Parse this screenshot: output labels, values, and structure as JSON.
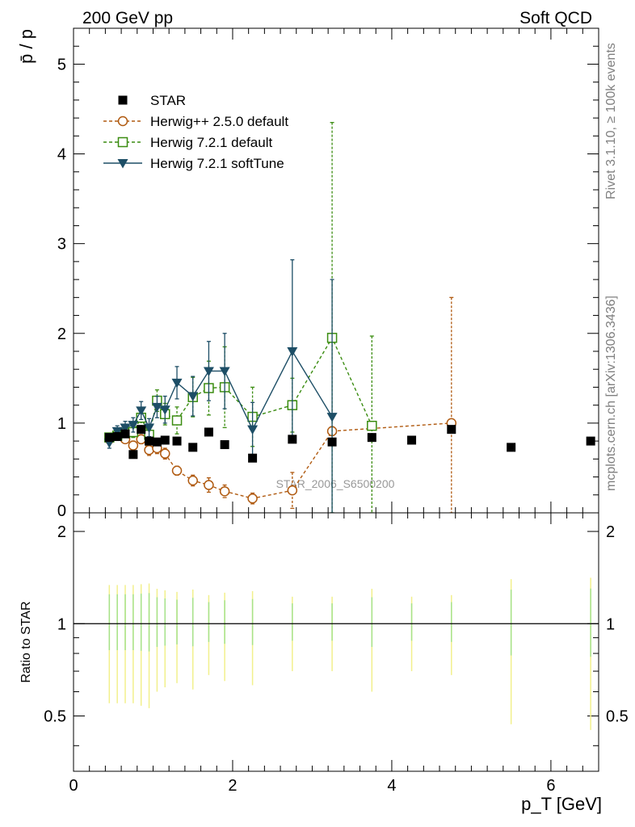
{
  "header": {
    "left": "200 GeV pp",
    "right": "Soft QCD",
    "side_top": "Rivet 3.1.10, ≥ 100k events",
    "side_bottom": "mcplots.cern.ch [arXiv:1306.3436]",
    "watermark": "STAR_2006_S6500200"
  },
  "chart_data": {
    "type": "scatter",
    "title": "200 GeV pp — Soft QCD",
    "ylabel": "p̄ / p",
    "ratio_ylabel": "Ratio to STAR",
    "xlabel": "p_T [GeV]",
    "xlim": [
      0,
      6.6
    ],
    "ylim": [
      0,
      5.4
    ],
    "ratio_ylim": [
      0.33,
      2.3
    ],
    "x_ticks": [
      "0",
      "2",
      "4",
      "6"
    ],
    "y_ticks": [
      "0",
      "1",
      "2",
      "3",
      "4",
      "5"
    ],
    "ratio_ticks": [
      "0.5",
      "1",
      "2"
    ],
    "legend": [
      "STAR",
      "Herwig++ 2.5.0 default",
      "Herwig 7.2.1 default",
      "Herwig 7.2.1 softTune"
    ],
    "series": [
      {
        "name": "STAR",
        "color": "#000000",
        "marker": "square-filled",
        "x": [
          0.45,
          0.55,
          0.65,
          0.75,
          0.85,
          0.95,
          1.05,
          1.15,
          1.3,
          1.5,
          1.7,
          1.9,
          2.25,
          2.75,
          3.25,
          3.75,
          4.25,
          4.75,
          5.5,
          6.5
        ],
        "y": [
          0.84,
          0.85,
          0.88,
          0.65,
          0.93,
          0.8,
          0.79,
          0.81,
          0.8,
          0.73,
          0.9,
          0.76,
          0.61,
          0.82,
          0.79,
          0.84,
          0.81,
          0.93,
          0.73,
          0.8
        ],
        "ratio_err_outer": [
          0.45,
          0.45,
          0.45,
          0.45,
          0.46,
          0.47,
          0.4,
          0.38,
          0.36,
          0.39,
          0.32,
          0.35,
          0.37,
          0.3,
          0.3,
          0.4,
          0.3,
          0.32,
          0.53,
          0.55
        ]
      },
      {
        "name": "Herwig++ 2.5.0 default",
        "color": "#b05a10",
        "marker": "circle-open",
        "line": "dashed",
        "x": [
          0.45,
          0.55,
          0.65,
          0.75,
          0.85,
          0.95,
          1.05,
          1.15,
          1.3,
          1.5,
          1.7,
          1.9,
          2.25,
          2.75,
          3.25,
          4.75
        ],
        "y": [
          0.82,
          0.86,
          0.82,
          0.75,
          0.82,
          0.7,
          0.72,
          0.66,
          0.47,
          0.36,
          0.31,
          0.24,
          0.16,
          0.25,
          0.91,
          1.0
        ],
        "err": [
          0.03,
          0.03,
          0.04,
          0.05,
          0.05,
          0.06,
          0.06,
          0.06,
          0.05,
          0.06,
          0.08,
          0.07,
          0.06,
          0.2,
          0.05,
          1.4
        ]
      },
      {
        "name": "Herwig 7.2.1 default",
        "color": "#3a8c10",
        "marker": "square-open",
        "line": "dashed",
        "x": [
          0.45,
          0.55,
          0.65,
          0.75,
          0.85,
          0.95,
          1.05,
          1.15,
          1.3,
          1.5,
          1.7,
          1.9,
          2.25,
          2.75,
          3.25,
          3.75
        ],
        "y": [
          0.84,
          0.86,
          0.89,
          0.9,
          1.06,
          0.87,
          1.25,
          1.1,
          1.03,
          1.29,
          1.39,
          1.4,
          1.07,
          1.2,
          1.95,
          0.97
        ],
        "err": [
          0.03,
          0.04,
          0.05,
          0.06,
          0.1,
          0.1,
          0.12,
          0.12,
          0.15,
          0.22,
          0.3,
          0.45,
          0.33,
          0.3,
          2.4,
          1.0
        ]
      },
      {
        "name": "Herwig 7.2.1 softTune",
        "color": "#1d4e66",
        "marker": "triangle-down-filled",
        "line": "solid",
        "x": [
          0.45,
          0.55,
          0.65,
          0.75,
          0.85,
          0.95,
          1.05,
          1.15,
          1.3,
          1.5,
          1.7,
          1.9,
          2.25,
          2.75,
          3.25
        ],
        "y": [
          0.78,
          0.91,
          0.95,
          0.98,
          1.14,
          0.95,
          1.18,
          1.15,
          1.45,
          1.3,
          1.58,
          1.58,
          0.93,
          1.8,
          1.07
        ],
        "err": [
          0.06,
          0.06,
          0.07,
          0.08,
          0.1,
          0.1,
          0.12,
          0.15,
          0.18,
          0.22,
          0.33,
          0.42,
          0.3,
          1.02,
          1.53
        ]
      }
    ]
  }
}
